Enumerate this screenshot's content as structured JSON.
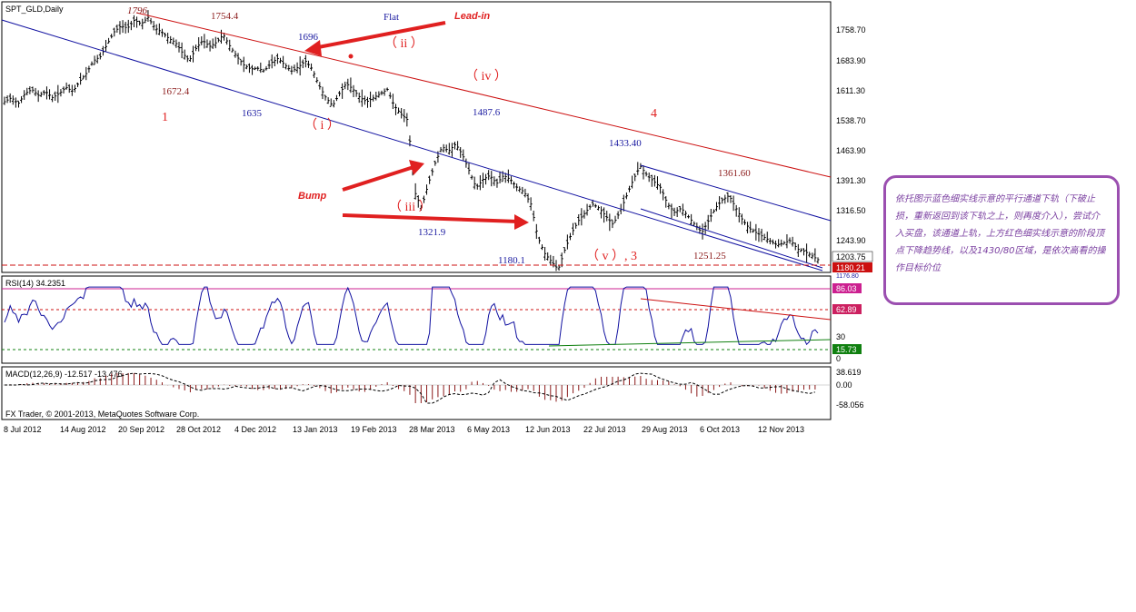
{
  "chart_title": "SPT_GLD,Daily",
  "colors": {
    "price_bar": "#000000",
    "channel_lower": "#1010a0",
    "channel_upper": "#cc1010",
    "wave_label": "#e02020",
    "blue_label": "#1a1aa0",
    "dark_red_label": "#8b1a1a",
    "rsi_line": "#1010a0",
    "macd_hist": "#8b1a1a",
    "note_border": "#9b4fb0",
    "note_text": "#7a3fa0"
  },
  "price_axis": {
    "ticks": [
      "1758.70",
      "1683.90",
      "1611.30",
      "1538.70",
      "1463.90",
      "1391.30",
      "1316.50",
      "1243.90"
    ],
    "current_price": "1203.75",
    "support_price": "1180.21",
    "overlap_label": "1176.80"
  },
  "date_axis": [
    "8 Jul 2012",
    "14 Aug 2012",
    "20 Sep 2012",
    "28 Oct 2012",
    "4 Dec 2012",
    "13 Jan 2013",
    "19 Feb 2013",
    "28 Mar 2013",
    "6 May 2013",
    "12 Jun 2013",
    "22 Jul 2013",
    "29 Aug 2013",
    "6 Oct 2013",
    "12 Nov 2013"
  ],
  "annotations": {
    "p1796": "1796",
    "p1754": "1754.4",
    "p1696": "1696",
    "p1672": "1672.4",
    "p1635": "1635",
    "p1487": "1487.6",
    "p1433": "1433.40",
    "p1361": "1361.60",
    "p1321": "1321.9",
    "p1251": "1251.25",
    "p1180": "1180.1",
    "flat": "Flat",
    "lead_in": "Lead-in",
    "bump": "Bump",
    "w1": "1",
    "w4": "4",
    "wi": "（ i ）",
    "wii": "（ ii ）",
    "wiii": "（ iii ）",
    "wiv": "（ iv ）",
    "wv": "（ v ）, 3"
  },
  "rsi": {
    "title": "RSI(14) 34.2351",
    "level_high": "86.03",
    "level_mid": "62.89",
    "level_30": "30",
    "level_low": "15.73",
    "level_0": "0"
  },
  "macd": {
    "title": "MACD(12,26,9) -12.517 -13.476",
    "axis_high": "38.619",
    "axis_zero": "0.00",
    "axis_low": "-58.056"
  },
  "footer": "FX Trader, © 2001-2013, MetaQuotes Software Corp.",
  "note": "依托图示蓝色细实线示意的平行通道下轨（下破止损，重新返回到该下轨之上，则再度介入），尝试介入买盘，该通道上轨，上方红色细实线示意的阶段顶点下降趋势线，以及1430/80区域，是依次高看的操作目标价位",
  "chart_data": {
    "type": "candlestick",
    "title": "SPT_GLD,Daily",
    "x_labels": [
      "8 Jul 2012",
      "14 Aug 2012",
      "20 Sep 2012",
      "28 Oct 2012",
      "4 Dec 2012",
      "13 Jan 2013",
      "19 Feb 2013",
      "28 Mar 2013",
      "6 May 2013",
      "12 Jun 2013",
      "22 Jul 2013",
      "29 Aug 2013",
      "6 Oct 2013",
      "12 Nov 2013"
    ],
    "y_ticks": [
      1758.7,
      1683.9,
      1611.3,
      1538.7,
      1463.9,
      1391.3,
      1316.5,
      1243.9
    ],
    "close_path": [
      1590,
      1600,
      1585,
      1610,
      1620,
      1605,
      1615,
      1600,
      1610,
      1625,
      1615,
      1640,
      1660,
      1690,
      1700,
      1730,
      1760,
      1775,
      1770,
      1790,
      1780,
      1796,
      1770,
      1760,
      1745,
      1735,
      1710,
      1690,
      1720,
      1740,
      1725,
      1735,
      1754,
      1725,
      1700,
      1680,
      1670,
      1672,
      1665,
      1685,
      1696,
      1680,
      1665,
      1675,
      1690,
      1670,
      1630,
      1600,
      1580,
      1610,
      1635,
      1620,
      1600,
      1590,
      1600,
      1610,
      1620,
      1580,
      1560,
      1545,
      1370,
      1330,
      1390,
      1440,
      1480,
      1470,
      1487,
      1460,
      1420,
      1380,
      1400,
      1410,
      1390,
      1410,
      1400,
      1380,
      1370,
      1340,
      1260,
      1220,
      1200,
      1180,
      1230,
      1270,
      1300,
      1320,
      1340,
      1330,
      1310,
      1290,
      1320,
      1360,
      1400,
      1433,
      1410,
      1395,
      1380,
      1340,
      1320,
      1330,
      1310,
      1290,
      1270,
      1300,
      1330,
      1350,
      1361,
      1330,
      1300,
      1280,
      1270,
      1260,
      1250,
      1240,
      1245,
      1251,
      1230,
      1225,
      1215,
      1204
    ],
    "channel_lower": [
      {
        "x": "8 Jul 2012",
        "y": 1790
      },
      {
        "x": "12 Nov 2013",
        "y": 1176
      }
    ],
    "channel_upper": [
      {
        "x": "20 Sep 2012",
        "y": 1796
      },
      {
        "x": "12 Nov 2013",
        "y": 1391
      }
    ],
    "rsi_last": 34.2351,
    "macd_last": -12.517,
    "macd_signal_last": -13.476
  }
}
